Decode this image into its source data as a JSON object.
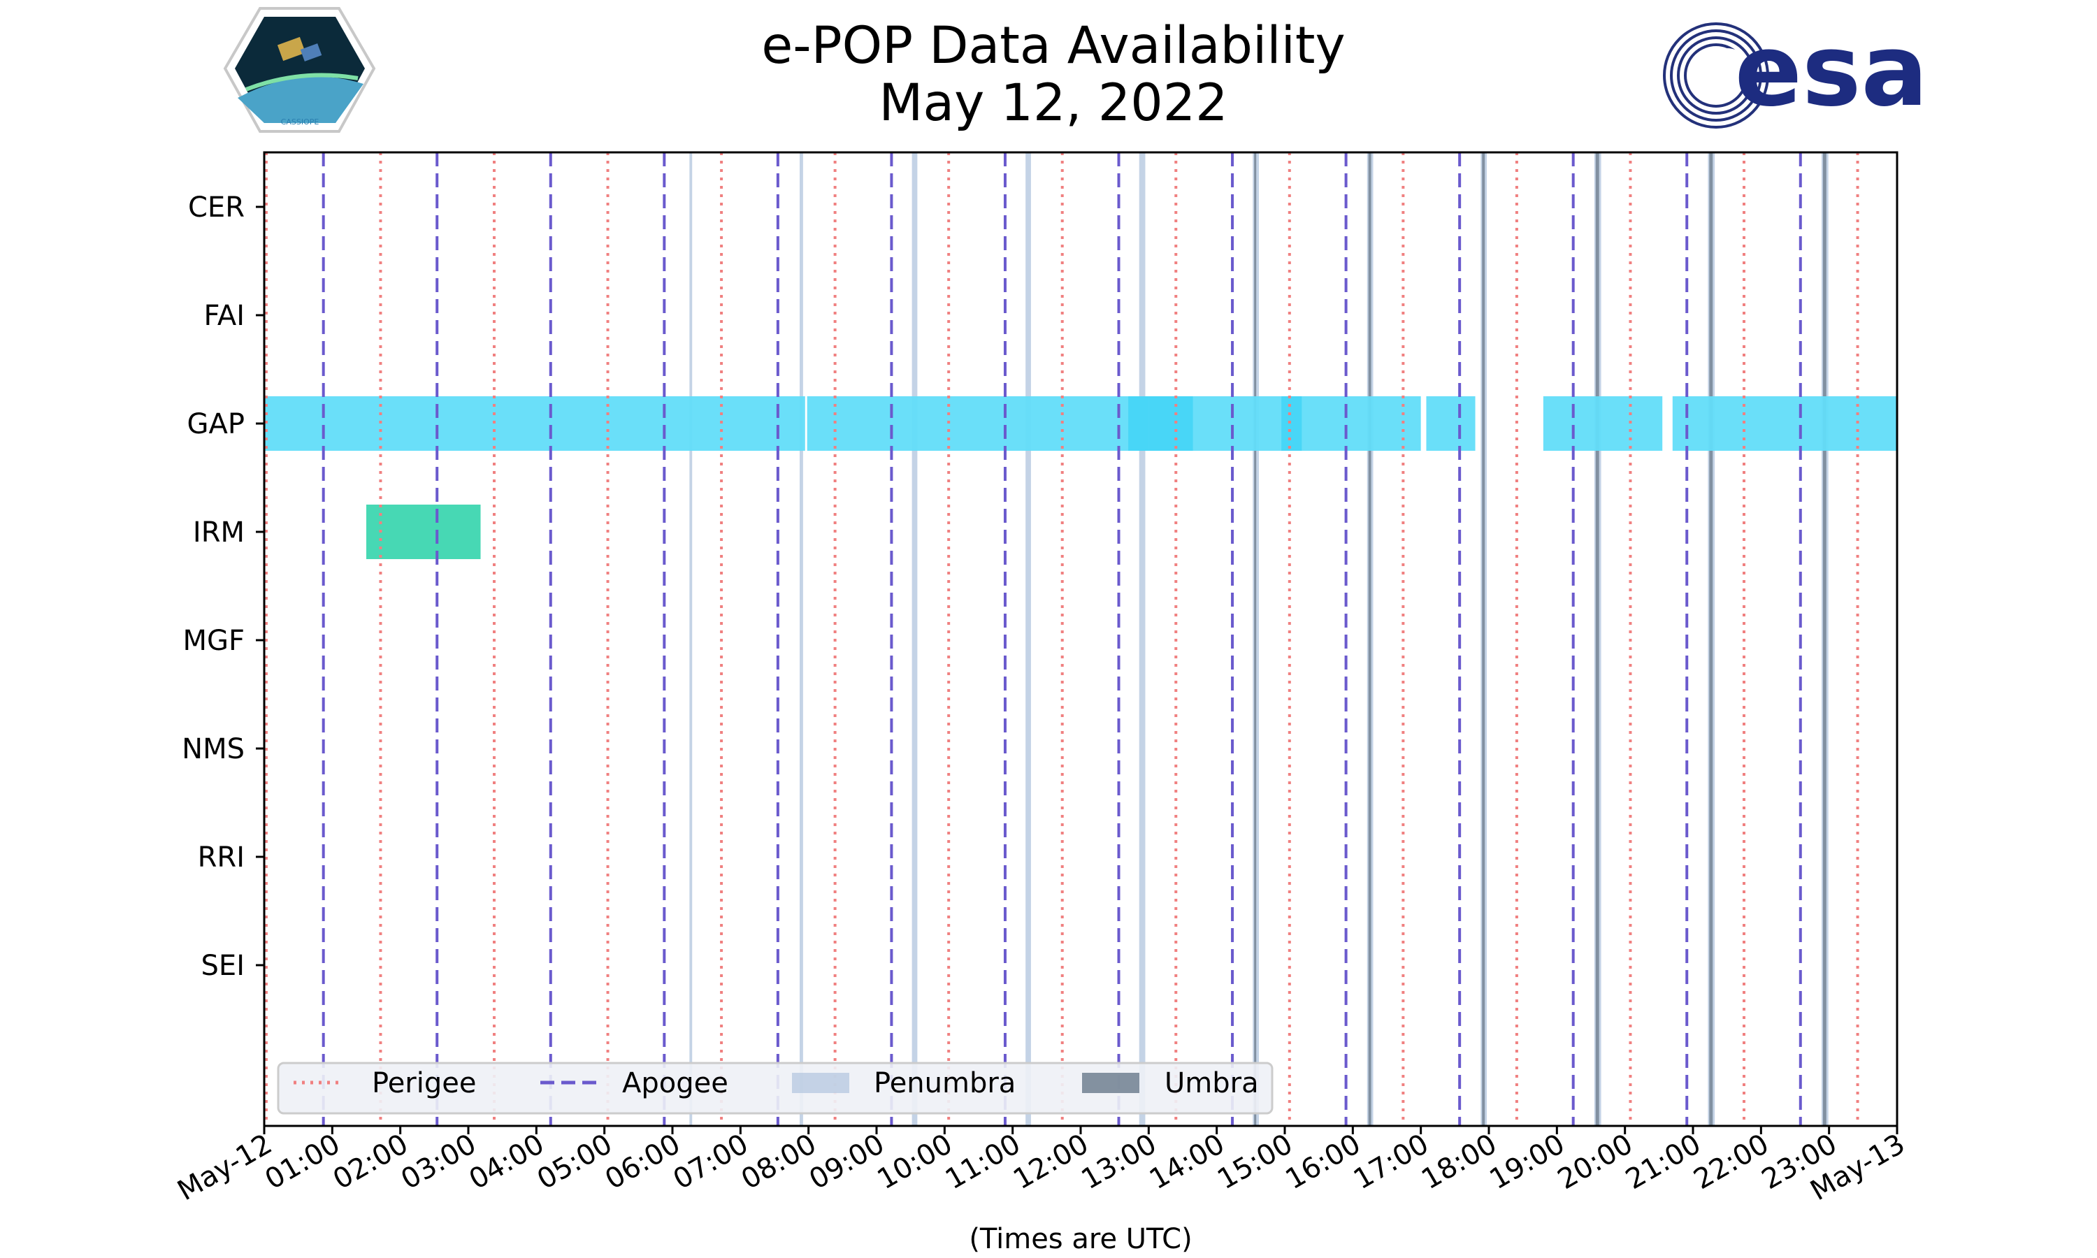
{
  "title": "e-POP Data Availability",
  "subtitle": "May 12, 2022",
  "logos": {
    "left": {
      "name": "CASSIOPE mission patch",
      "text": "CASSIOPE"
    },
    "right": {
      "name": "ESA logo",
      "text": "esa"
    }
  },
  "colors": {
    "perigee": "#f08080",
    "apogee": "#6a5acd",
    "penumbra": "#b0c4de",
    "umbra": "#708090",
    "gap": "#62ddf9",
    "gap_dense": "#45d5f6",
    "irm": "#3dd6b0",
    "legend_bg": "#eef1f6"
  },
  "chart_data": {
    "type": "timeline",
    "xlabel": "(Times are UTC)",
    "ylabel": "",
    "x_range_hours": [
      0,
      24
    ],
    "x_ticks": [
      {
        "hour": 0,
        "label": "May-12"
      },
      {
        "hour": 1,
        "label": "01:00"
      },
      {
        "hour": 2,
        "label": "02:00"
      },
      {
        "hour": 3,
        "label": "03:00"
      },
      {
        "hour": 4,
        "label": "04:00"
      },
      {
        "hour": 5,
        "label": "05:00"
      },
      {
        "hour": 6,
        "label": "06:00"
      },
      {
        "hour": 7,
        "label": "07:00"
      },
      {
        "hour": 8,
        "label": "08:00"
      },
      {
        "hour": 9,
        "label": "09:00"
      },
      {
        "hour": 10,
        "label": "10:00"
      },
      {
        "hour": 11,
        "label": "11:00"
      },
      {
        "hour": 12,
        "label": "12:00"
      },
      {
        "hour": 13,
        "label": "13:00"
      },
      {
        "hour": 14,
        "label": "14:00"
      },
      {
        "hour": 15,
        "label": "15:00"
      },
      {
        "hour": 16,
        "label": "16:00"
      },
      {
        "hour": 17,
        "label": "17:00"
      },
      {
        "hour": 18,
        "label": "18:00"
      },
      {
        "hour": 19,
        "label": "19:00"
      },
      {
        "hour": 20,
        "label": "20:00"
      },
      {
        "hour": 21,
        "label": "21:00"
      },
      {
        "hour": 22,
        "label": "22:00"
      },
      {
        "hour": 23,
        "label": "23:00"
      },
      {
        "hour": 24,
        "label": "May-13"
      }
    ],
    "instruments": [
      "CER",
      "FAI",
      "GAP",
      "IRM",
      "MGF",
      "NMS",
      "RRI",
      "SEI"
    ],
    "perigee_hours": [
      0.03,
      1.71,
      3.38,
      5.05,
      6.72,
      8.39,
      10.06,
      11.73,
      13.4,
      15.07,
      16.74,
      18.41,
      20.08,
      21.75,
      23.42
    ],
    "apogee_hours": [
      0.87,
      2.54,
      4.21,
      5.88,
      7.55,
      9.22,
      10.89,
      12.56,
      14.23,
      15.9,
      17.57,
      19.24,
      20.91,
      22.58
    ],
    "penumbra_bands": [
      [
        6.25,
        6.29
      ],
      [
        7.87,
        7.92
      ],
      [
        9.52,
        9.6
      ],
      [
        11.19,
        11.27
      ],
      [
        12.86,
        12.95
      ],
      [
        14.53,
        14.62
      ],
      [
        16.21,
        16.3
      ],
      [
        17.88,
        17.97
      ],
      [
        19.55,
        19.65
      ],
      [
        21.22,
        21.32
      ],
      [
        22.89,
        22.99
      ]
    ],
    "umbra_bands": [
      [
        14.55,
        14.58
      ],
      [
        16.23,
        16.27
      ],
      [
        17.9,
        17.94
      ],
      [
        19.57,
        19.62
      ],
      [
        21.24,
        21.29
      ],
      [
        22.91,
        22.96
      ]
    ],
    "coverage": [
      {
        "instrument": "GAP",
        "intervals": [
          [
            0,
            7.95
          ],
          [
            7.98,
            17.0
          ],
          [
            17.08,
            17.8
          ],
          [
            18.8,
            20.55
          ],
          [
            20.7,
            24
          ]
        ],
        "dense_intervals": [
          [
            12.7,
            13.0
          ],
          [
            13.0,
            13.65
          ],
          [
            14.95,
            15.25
          ]
        ]
      },
      {
        "instrument": "IRM",
        "intervals": [
          [
            1.5,
            3.18
          ]
        ]
      }
    ],
    "legend": {
      "position": "lower-left",
      "entries": [
        {
          "label": "Perigee",
          "style": "dotted"
        },
        {
          "label": "Apogee",
          "style": "dashed"
        },
        {
          "label": "Penumbra",
          "style": "patch"
        },
        {
          "label": "Umbra",
          "style": "patch"
        }
      ]
    },
    "grid": false
  }
}
